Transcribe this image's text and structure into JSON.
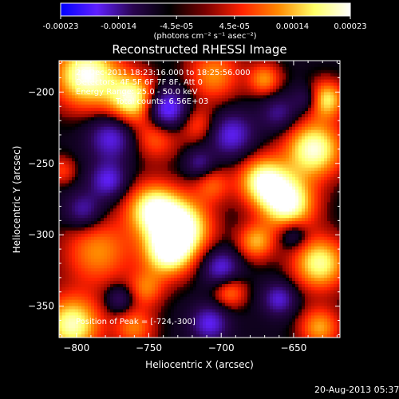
{
  "chart_data": {
    "type": "heatmap",
    "title": "Reconstructed RHESSI Image",
    "xlabel": "Heliocentric X (arcsec)",
    "ylabel": "Heliocentric Y (arcsec)",
    "xlim": [
      -812,
      -618
    ],
    "ylim": [
      -372,
      -178
    ],
    "xticks": [
      -800,
      -750,
      -700,
      -650
    ],
    "yticks": [
      -200,
      -250,
      -300,
      -350
    ],
    "colorbar": {
      "range": [
        -0.00023,
        0.00023
      ],
      "ticks": [
        "-0.00023",
        "-0.00014",
        "-4.5e-05",
        "4.5e-05",
        "0.00014",
        "0.00023"
      ],
      "unit_label": "(photons cm⁻² s⁻¹ asec⁻²)",
      "colormap": [
        "#0000ff",
        "#6020ff",
        "#2a0550",
        "#000000",
        "#7a0000",
        "#ff2200",
        "#ff8800",
        "#ffff66",
        "#ffffff"
      ]
    },
    "annotations": {
      "time_range": "26-Dec-2011 18:23:16.000 to 18:25:56.000",
      "detectors": "Detectors: 4F 5F 6F 7F 8F, Att 0",
      "energy_range": "Energy Range: 25.0 - 50.0 keV",
      "counts": "Total counts: 6.56E+03",
      "peak_position": "Position of Peak = [-724,-300]"
    },
    "peak": {
      "x": -724,
      "y": -300
    },
    "blobs": [
      {
        "x": -793,
        "y": -188,
        "r": 16,
        "v": 1.0
      },
      {
        "x": -761,
        "y": -205,
        "r": 12,
        "v": 0.9
      },
      {
        "x": -705,
        "y": -188,
        "r": 13,
        "v": 0.55
      },
      {
        "x": -670,
        "y": -191,
        "r": 8,
        "v": 0.55
      },
      {
        "x": -745,
        "y": -232,
        "r": 11,
        "v": 0.45
      },
      {
        "x": -716,
        "y": -223,
        "r": 9,
        "v": 0.4
      },
      {
        "x": -671,
        "y": -262,
        "r": 12,
        "v": 0.9
      },
      {
        "x": -654,
        "y": -278,
        "r": 13,
        "v": 1.0
      },
      {
        "x": -636,
        "y": -240,
        "r": 14,
        "v": 0.95
      },
      {
        "x": -628,
        "y": -205,
        "r": 9,
        "v": 0.8
      },
      {
        "x": -632,
        "y": -320,
        "r": 13,
        "v": 0.85
      },
      {
        "x": -632,
        "y": -365,
        "r": 10,
        "v": 0.6
      },
      {
        "x": -676,
        "y": -305,
        "r": 9,
        "v": 0.6
      },
      {
        "x": -694,
        "y": -340,
        "r": 8,
        "v": 0.5
      },
      {
        "x": -747,
        "y": -282,
        "r": 13,
        "v": 0.9
      },
      {
        "x": -727,
        "y": -295,
        "r": 14,
        "v": 1.0
      },
      {
        "x": -737,
        "y": -313,
        "r": 12,
        "v": 0.85
      },
      {
        "x": -785,
        "y": -312,
        "r": 17,
        "v": 0.55
      },
      {
        "x": -752,
        "y": -338,
        "r": 9,
        "v": 0.45
      },
      {
        "x": -803,
        "y": -363,
        "r": 14,
        "v": 0.9
      },
      {
        "x": -760,
        "y": -365,
        "r": 10,
        "v": 0.5
      },
      {
        "x": -706,
        "y": -265,
        "r": 9,
        "v": 0.4
      },
      {
        "x": -810,
        "y": -255,
        "r": 7,
        "v": 0.35
      },
      {
        "x": -738,
        "y": -212,
        "r": 10,
        "v": -0.85
      },
      {
        "x": -776,
        "y": -232,
        "r": 11,
        "v": -0.6
      },
      {
        "x": -693,
        "y": -230,
        "r": 11,
        "v": -0.6
      },
      {
        "x": -700,
        "y": -323,
        "r": 9,
        "v": -0.6
      },
      {
        "x": -660,
        "y": -345,
        "r": 8,
        "v": -0.55
      },
      {
        "x": -708,
        "y": -362,
        "r": 9,
        "v": -0.6
      },
      {
        "x": -778,
        "y": -262,
        "r": 9,
        "v": -0.6
      },
      {
        "x": -795,
        "y": -283,
        "r": 9,
        "v": -0.5
      },
      {
        "x": -640,
        "y": -205,
        "r": 7,
        "v": -0.4
      },
      {
        "x": -660,
        "y": -215,
        "r": 9,
        "v": -0.4
      },
      {
        "x": -770,
        "y": -345,
        "r": 7,
        "v": -0.4
      },
      {
        "x": -715,
        "y": -250,
        "r": 7,
        "v": -0.4
      },
      {
        "x": -650,
        "y": -300,
        "r": 7,
        "v": -0.4
      }
    ]
  },
  "footer": {
    "timestamp": "20-Aug-2013 05:37"
  }
}
